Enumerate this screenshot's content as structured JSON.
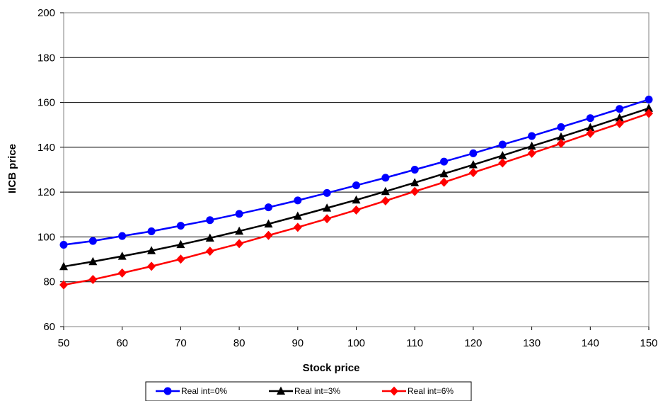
{
  "chart_data": {
    "type": "line",
    "xlabel": "Stock price",
    "ylabel": "IICB price",
    "xlim": [
      50,
      150
    ],
    "ylim": [
      60,
      200
    ],
    "x_ticks": [
      50,
      60,
      70,
      80,
      90,
      100,
      110,
      120,
      130,
      140,
      150
    ],
    "y_ticks": [
      60,
      80,
      100,
      120,
      140,
      160,
      180,
      200
    ],
    "grid": "horizontal",
    "legend": "bottom",
    "x": [
      50,
      55,
      60,
      65,
      70,
      75,
      80,
      85,
      90,
      95,
      100,
      105,
      110,
      115,
      120,
      125,
      130,
      135,
      140,
      145,
      150
    ],
    "series": [
      {
        "name": "Real int=0%",
        "color": "#0000FF",
        "marker": "circle",
        "values": [
          96.5,
          98.2,
          100.4,
          102.5,
          105.0,
          107.5,
          110.3,
          113.2,
          116.3,
          119.6,
          123.0,
          126.4,
          130.0,
          133.6,
          137.3,
          141.2,
          145.0,
          149.0,
          153.0,
          157.1,
          161.3
        ]
      },
      {
        "name": "Real int=3%",
        "color": "#000000",
        "marker": "triangle",
        "values": [
          86.8,
          89.0,
          91.4,
          93.9,
          96.6,
          99.5,
          102.6,
          105.8,
          109.3,
          112.9,
          116.5,
          120.3,
          124.2,
          128.2,
          132.2,
          136.3,
          140.5,
          144.6,
          148.8,
          153.1,
          157.4
        ]
      },
      {
        "name": "Real int=6%",
        "color": "#FF0000",
        "marker": "diamond",
        "values": [
          78.6,
          81.0,
          83.9,
          86.9,
          90.1,
          93.6,
          97.0,
          100.7,
          104.3,
          108.1,
          112.0,
          116.1,
          120.3,
          124.4,
          128.7,
          133.0,
          137.3,
          141.7,
          146.2,
          150.6,
          155.1
        ]
      }
    ]
  }
}
